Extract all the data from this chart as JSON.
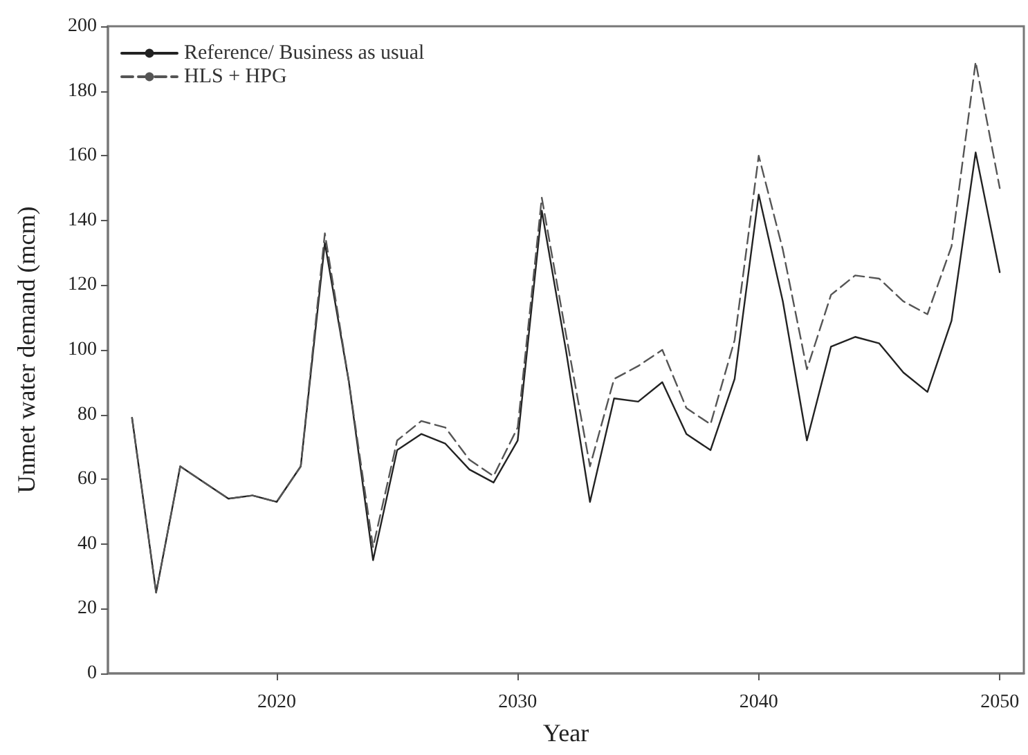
{
  "chart_data": {
    "type": "line",
    "xlabel": "Year",
    "ylabel": "Unmet water demand (mcm)",
    "x": [
      2014,
      2015,
      2016,
      2017,
      2018,
      2019,
      2020,
      2021,
      2022,
      2023,
      2024,
      2025,
      2026,
      2027,
      2028,
      2029,
      2030,
      2031,
      2032,
      2033,
      2034,
      2035,
      2036,
      2037,
      2038,
      2039,
      2040,
      2041,
      2042,
      2043,
      2044,
      2045,
      2046,
      2047,
      2048,
      2049,
      2050
    ],
    "series": [
      {
        "name": "Reference/ Business as usual",
        "color": "#222222",
        "line_style": "solid",
        "values": [
          79,
          25,
          64,
          59,
          54,
          55,
          53,
          64,
          133,
          90,
          35,
          69,
          74,
          71,
          63,
          59,
          72,
          143,
          100,
          53,
          85,
          84,
          90,
          74,
          69,
          91,
          148,
          115,
          72,
          101,
          104,
          102,
          93,
          87,
          109,
          161,
          124
        ]
      },
      {
        "name": "HLS + HPG",
        "color": "#555555",
        "line_style": "dashed",
        "values": [
          79,
          25,
          64,
          59,
          54,
          55,
          53,
          64,
          136,
          90,
          39,
          72,
          78,
          76,
          66,
          61,
          76,
          147,
          105,
          64,
          91,
          95,
          100,
          82,
          77,
          103,
          160,
          131,
          94,
          117,
          123,
          122,
          115,
          111,
          132,
          189,
          150
        ]
      }
    ],
    "xlim": [
      2013,
      2051
    ],
    "xticks": [
      2020,
      2030,
      2040,
      2050
    ],
    "ylim": [
      0,
      200
    ],
    "yticks": [
      0,
      20,
      40,
      60,
      80,
      100,
      120,
      140,
      160,
      180,
      200
    ],
    "legend": "top left",
    "grid": false,
    "marker": "none"
  }
}
